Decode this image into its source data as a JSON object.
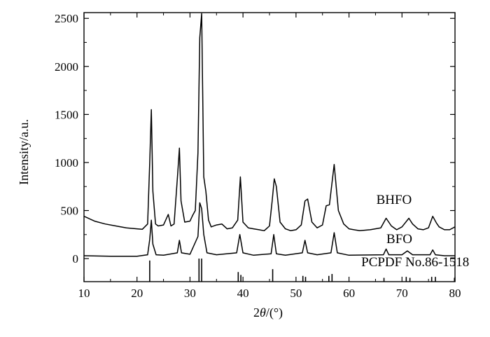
{
  "chart_data": {
    "type": "line",
    "title": "",
    "xlabel": "2θ/(°)",
    "xlabel_parts": {
      "prefix": "2",
      "symbol": "θ",
      "suffix": "/(°)"
    },
    "ylabel": "Intensity/a.u.",
    "xlim": [
      10,
      80
    ],
    "ylim": [
      -240,
      2560
    ],
    "x_ticks": [
      10,
      20,
      30,
      40,
      50,
      60,
      70,
      80
    ],
    "y_ticks": [
      0,
      500,
      1000,
      1500,
      2000,
      2500
    ],
    "x_tick_labels": [
      "10",
      "20",
      "30",
      "40",
      "50",
      "60",
      "70",
      "80"
    ],
    "y_tick_labels": [
      "0",
      "500",
      "1000",
      "1500",
      "2000",
      "2500"
    ],
    "grid": false,
    "legend": "none",
    "series": [
      {
        "name": "BHFO",
        "x": [
          10,
          12,
          14,
          16,
          18,
          20,
          21,
          22,
          22.4,
          22.7,
          23.0,
          23.5,
          24,
          25,
          25.9,
          26.4,
          27,
          27.7,
          28.0,
          28.3,
          29,
          30,
          30.5,
          31,
          31.5,
          31.85,
          32.2,
          32.6,
          33.0,
          33.5,
          34,
          35,
          36,
          37,
          38,
          39,
          39.5,
          40,
          41,
          42,
          43,
          44,
          45,
          45.5,
          45.9,
          46.3,
          47,
          48,
          49,
          50,
          51,
          51.7,
          52.2,
          53,
          54,
          55,
          55.7,
          56.3,
          57.2,
          58,
          59,
          60,
          62,
          64,
          66,
          67,
          68,
          69,
          70,
          71.3,
          72,
          73,
          74,
          75,
          75.8,
          76.5,
          77,
          78,
          79,
          80
        ],
        "y": [
          440,
          390,
          360,
          340,
          320,
          310,
          305,
          360,
          1000,
          1550,
          700,
          360,
          340,
          350,
          460,
          340,
          360,
          900,
          1150,
          600,
          380,
          390,
          450,
          500,
          1100,
          2300,
          2550,
          850,
          700,
          400,
          330,
          350,
          360,
          310,
          320,
          400,
          850,
          380,
          320,
          310,
          300,
          290,
          340,
          600,
          830,
          750,
          380,
          310,
          290,
          300,
          350,
          600,
          620,
          380,
          320,
          350,
          550,
          560,
          980,
          500,
          360,
          310,
          290,
          300,
          320,
          420,
          340,
          300,
          330,
          420,
          360,
          310,
          300,
          320,
          440,
          370,
          330,
          300,
          300,
          330
        ]
      },
      {
        "name": "BFO",
        "x": [
          10,
          15,
          20,
          22.0,
          22.4,
          22.7,
          23.0,
          23.6,
          25,
          27.6,
          28.0,
          28.4,
          30,
          31.5,
          31.85,
          32.2,
          32.6,
          33.2,
          35,
          38.8,
          39.4,
          40.0,
          42,
          45.3,
          45.8,
          46.3,
          48,
          51.2,
          51.7,
          52.2,
          54,
          56.6,
          57.2,
          57.8,
          60,
          66.5,
          67.0,
          67.5,
          70,
          71,
          72,
          75.3,
          75.8,
          76.3,
          78,
          80
        ],
        "y": [
          30,
          25,
          25,
          40,
          200,
          400,
          150,
          40,
          35,
          60,
          190,
          60,
          45,
          230,
          580,
          520,
          250,
          60,
          40,
          60,
          250,
          60,
          35,
          50,
          250,
          50,
          35,
          60,
          190,
          60,
          40,
          60,
          270,
          60,
          35,
          40,
          100,
          40,
          40,
          80,
          40,
          40,
          90,
          40,
          30,
          30
        ]
      }
    ],
    "series_labels": [
      {
        "text": "BHFO",
        "x": 68.5,
        "y": 570
      },
      {
        "text": "BFO",
        "x": 69.5,
        "y": 160
      },
      {
        "text": "PCPDF No.86-1518",
        "x": 72.5,
        "y": -80
      }
    ],
    "reference": {
      "name": "PCPDF No.86-1518",
      "baseline": -240,
      "sticks": [
        {
          "x": 22.4,
          "h": 220
        },
        {
          "x": 31.7,
          "h": 240
        },
        {
          "x": 32.2,
          "h": 240
        },
        {
          "x": 39.1,
          "h": 100
        },
        {
          "x": 39.6,
          "h": 70
        },
        {
          "x": 45.6,
          "h": 130
        },
        {
          "x": 51.3,
          "h": 60
        },
        {
          "x": 51.8,
          "h": 50
        },
        {
          "x": 56.2,
          "h": 60
        },
        {
          "x": 56.8,
          "h": 80
        },
        {
          "x": 66.6,
          "h": 40
        },
        {
          "x": 70.8,
          "h": 50
        },
        {
          "x": 71.5,
          "h": 40
        },
        {
          "x": 75.6,
          "h": 50
        },
        {
          "x": 76.3,
          "h": 50
        },
        {
          "x": 79.9,
          "h": 40
        }
      ]
    },
    "colors": {
      "line": "#000000",
      "axis": "#000000",
      "background": "#ffffff"
    }
  }
}
